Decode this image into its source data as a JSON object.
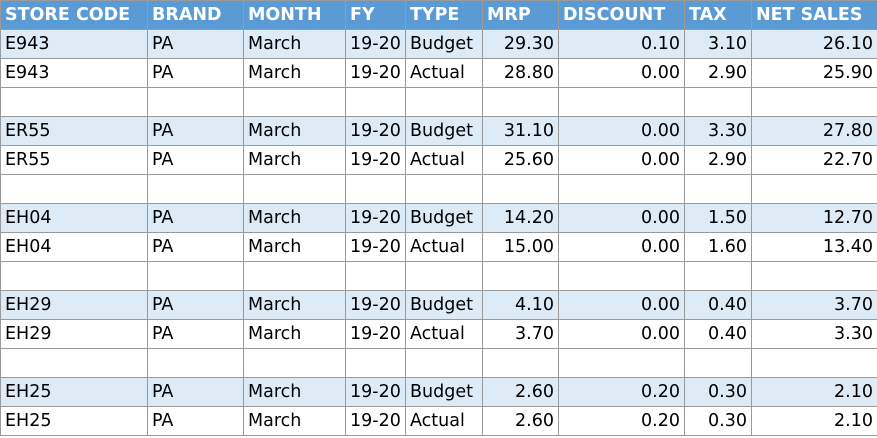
{
  "headers": [
    "STORE CODE",
    "BRAND",
    "MONTH",
    "FY",
    "TYPE",
    "MRP",
    "DISCOUNT",
    "TAX",
    "NET SALES"
  ],
  "rows": [
    {
      "store": "E943",
      "brand": "PA",
      "month": "March",
      "fy": "19-20",
      "type": "Budget",
      "mrp": "29.30",
      "discount": "0.10",
      "tax": "3.10",
      "net": "26.10"
    },
    {
      "store": "E943",
      "brand": "PA",
      "month": "March",
      "fy": "19-20",
      "type": "Actual",
      "mrp": "28.80",
      "discount": "0.00",
      "tax": "2.90",
      "net": "25.90"
    },
    {
      "store": "ER55",
      "brand": "PA",
      "month": "March",
      "fy": "19-20",
      "type": "Budget",
      "mrp": "31.10",
      "discount": "0.00",
      "tax": "3.30",
      "net": "27.80"
    },
    {
      "store": "ER55",
      "brand": "PA",
      "month": "March",
      "fy": "19-20",
      "type": "Actual",
      "mrp": "25.60",
      "discount": "0.00",
      "tax": "2.90",
      "net": "22.70"
    },
    {
      "store": "EH04",
      "brand": "PA",
      "month": "March",
      "fy": "19-20",
      "type": "Budget",
      "mrp": "14.20",
      "discount": "0.00",
      "tax": "1.50",
      "net": "12.70"
    },
    {
      "store": "EH04",
      "brand": "PA",
      "month": "March",
      "fy": "19-20",
      "type": "Actual",
      "mrp": "15.00",
      "discount": "0.00",
      "tax": "1.60",
      "net": "13.40"
    },
    {
      "store": "EH29",
      "brand": "PA",
      "month": "March",
      "fy": "19-20",
      "type": "Budget",
      "mrp": "4.10",
      "discount": "0.00",
      "tax": "0.40",
      "net": "3.70"
    },
    {
      "store": "EH29",
      "brand": "PA",
      "month": "March",
      "fy": "19-20",
      "type": "Actual",
      "mrp": "3.70",
      "discount": "0.00",
      "tax": "0.40",
      "net": "3.30"
    },
    {
      "store": "EH25",
      "brand": "PA",
      "month": "March",
      "fy": "19-20",
      "type": "Budget",
      "mrp": "2.60",
      "discount": "0.20",
      "tax": "0.30",
      "net": "2.10"
    },
    {
      "store": "EH25",
      "brand": "PA",
      "month": "March",
      "fy": "19-20",
      "type": "Actual",
      "mrp": "2.60",
      "discount": "0.20",
      "tax": "0.30",
      "net": "2.10"
    }
  ],
  "colors": {
    "header_bg": "#5b9bd5",
    "header_text": "#ffffff",
    "budget_row_bg": "#ddebf7",
    "actual_row_bg": "#ffffff",
    "grid": "#9a9a9a"
  }
}
